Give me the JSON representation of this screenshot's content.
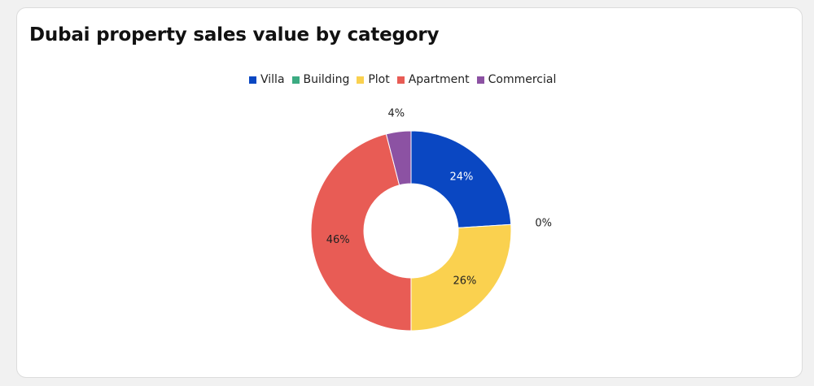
{
  "chart_data": {
    "type": "pie",
    "title": "Dubai property sales value by category",
    "categories": [
      "Villa",
      "Building",
      "Plot",
      "Apartment",
      "Commercial"
    ],
    "values": [
      24,
      0,
      26,
      46,
      4
    ],
    "value_labels": [
      "24%",
      "0%",
      "26%",
      "46%",
      "4%"
    ],
    "unit": "%",
    "donut": true,
    "legend_position": "top-center",
    "colors": [
      "#0a47c2",
      "#3cab82",
      "#fad14f",
      "#e85c55",
      "#8c52a3"
    ],
    "label_colors": [
      "#ffffff",
      "#222222",
      "#222222",
      "#222222",
      "#222222"
    ],
    "label_outside": [
      false,
      true,
      false,
      false,
      true
    ]
  }
}
